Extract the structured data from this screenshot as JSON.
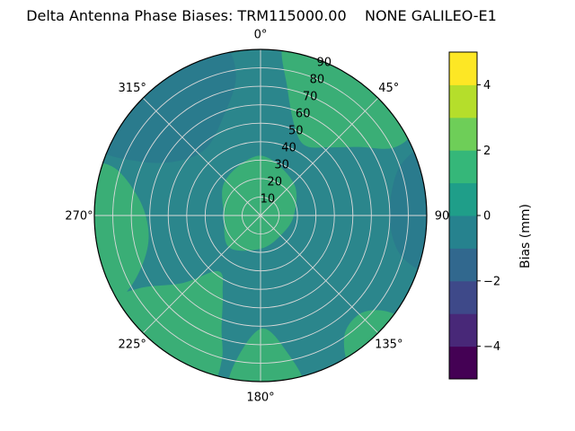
{
  "title": "Delta Antenna Phase Biases: TRM115000.00    NONE GALILEO-E1",
  "chart_data": {
    "type": "heatmap",
    "projection": "polar",
    "title": "Delta Antenna Phase Biases: TRM115000.00    NONE GALILEO-E1",
    "antenna": "TRM115000.00",
    "radome": "NONE",
    "signal": "GALILEO-E1",
    "azimuth_tick_labels": [
      {
        "label": "0°",
        "deg": 0
      },
      {
        "label": "45°",
        "deg": 45
      },
      {
        "label": "90",
        "deg": 90
      },
      {
        "label": "135°",
        "deg": 135
      },
      {
        "label": "180°",
        "deg": 180
      },
      {
        "label": "225°",
        "deg": 225
      },
      {
        "label": "270°",
        "deg": 270
      },
      {
        "label": "315°",
        "deg": 315
      }
    ],
    "radial_ticks": {
      "values": [
        10,
        20,
        30,
        40,
        50,
        60,
        70,
        80,
        90
      ],
      "labels": [
        "10",
        "20",
        "30",
        "40",
        "50",
        "60",
        "70",
        "80",
        "90"
      ],
      "max": 90,
      "label_azimuth_deg": 22.5
    },
    "grid": {
      "color": "#d9d9d9",
      "circle_step": 10,
      "spoke_step_deg": 45
    },
    "colorbar": {
      "label": "Bias (mm)",
      "range": [
        -5,
        5
      ],
      "colormap": "viridis",
      "ticks": [
        {
          "value": 4,
          "label": "4"
        },
        {
          "value": 2,
          "label": "2"
        },
        {
          "value": 0,
          "label": "0"
        },
        {
          "value": -2,
          "label": "−2"
        },
        {
          "value": -4,
          "label": "−4"
        }
      ],
      "segment_colors_low_to_high": [
        "#440154",
        "#482878",
        "#3e4989",
        "#31688e",
        "#26828e",
        "#1f9e89",
        "#35b779",
        "#6ece58",
        "#b5de2b",
        "#fde725"
      ],
      "segment_value_bands_mm": [
        [
          -5,
          -4
        ],
        [
          -4,
          -3
        ],
        [
          -3,
          -2
        ],
        [
          -2,
          -1
        ],
        [
          -1,
          0
        ],
        [
          0,
          1
        ],
        [
          1,
          2
        ],
        [
          2,
          3
        ],
        [
          3,
          4
        ],
        [
          4,
          5
        ]
      ]
    },
    "field": {
      "units": "mm",
      "base": {
        "value_band_mm": [
          0,
          1
        ],
        "color": "#2b868c",
        "description": "dominant teal background, bias near 0 mm"
      },
      "regions": [
        {
          "name": "northeast-green",
          "value_band_mm": [
            1,
            2
          ],
          "color": "#3aae76",
          "points": [
            [
              8,
              1.05
            ],
            [
              25,
              1.05
            ],
            [
              45,
              1.05
            ],
            [
              60,
              1.05
            ],
            [
              63,
              0.9
            ],
            [
              55,
              0.72
            ],
            [
              45,
              0.58
            ],
            [
              33,
              0.5
            ],
            [
              22,
              0.56
            ],
            [
              12,
              0.78
            ]
          ]
        },
        {
          "name": "center-green",
          "value_band_mm": [
            1,
            2
          ],
          "color": "#3aae76",
          "points": [
            [
              0,
              0.36
            ],
            [
              45,
              0.28
            ],
            [
              90,
              0.2
            ],
            [
              135,
              0.17
            ],
            [
              180,
              0.2
            ],
            [
              225,
              0.27
            ],
            [
              270,
              0.22
            ],
            [
              315,
              0.3
            ]
          ]
        },
        {
          "name": "west-rim-green",
          "value_band_mm": [
            1,
            2
          ],
          "color": "#3aae76",
          "points": [
            [
              240,
              1.05
            ],
            [
              255,
              1.05
            ],
            [
              272,
              1.05
            ],
            [
              286,
              1.05
            ],
            [
              288,
              0.92
            ],
            [
              278,
              0.74
            ],
            [
              263,
              0.68
            ],
            [
              250,
              0.74
            ],
            [
              241,
              0.9
            ]
          ]
        },
        {
          "name": "southwest-lobe-green",
          "value_band_mm": [
            1,
            2
          ],
          "color": "#3aae76",
          "points": [
            [
              197,
              1.05
            ],
            [
              212,
              1.05
            ],
            [
              228,
              1.05
            ],
            [
              240,
              1.05
            ],
            [
              239,
              0.85
            ],
            [
              229,
              0.62
            ],
            [
              217,
              0.42
            ],
            [
              206,
              0.52
            ],
            [
              199,
              0.72
            ],
            [
              195,
              0.9
            ]
          ]
        },
        {
          "name": "south-rim-green",
          "value_band_mm": [
            1,
            2
          ],
          "color": "#3aae76",
          "points": [
            [
              166,
              1.05
            ],
            [
              178,
              1.05
            ],
            [
              190,
              1.05
            ],
            [
              189,
              0.86
            ],
            [
              179,
              0.68
            ],
            [
              169,
              0.84
            ]
          ]
        },
        {
          "name": "southeast-rim-green",
          "value_band_mm": [
            1,
            2
          ],
          "color": "#3aae76",
          "points": [
            [
              127,
              1.05
            ],
            [
              138,
              1.05
            ],
            [
              149,
              1.05
            ],
            [
              145,
              0.88
            ],
            [
              135,
              0.84
            ],
            [
              128,
              0.93
            ]
          ]
        },
        {
          "name": "northwest-dark-teal",
          "value_band_mm": [
            -1,
            0
          ],
          "color": "#2a7b8d",
          "points": [
            [
              293,
              1.05
            ],
            [
              310,
              1.05
            ],
            [
              330,
              1.05
            ],
            [
              347,
              1.05
            ],
            [
              350,
              0.85
            ],
            [
              338,
              0.62
            ],
            [
              320,
              0.52
            ],
            [
              303,
              0.6
            ],
            [
              294,
              0.8
            ]
          ]
        },
        {
          "name": "east-rim-dark-teal",
          "value_band_mm": [
            -1,
            0
          ],
          "color": "#2a7b8d",
          "points": [
            [
              68,
              1.05
            ],
            [
              80,
              1.05
            ],
            [
              95,
              1.05
            ],
            [
              108,
              1.05
            ],
            [
              106,
              0.88
            ],
            [
              94,
              0.78
            ],
            [
              80,
              0.8
            ],
            [
              70,
              0.9
            ]
          ]
        }
      ]
    }
  }
}
